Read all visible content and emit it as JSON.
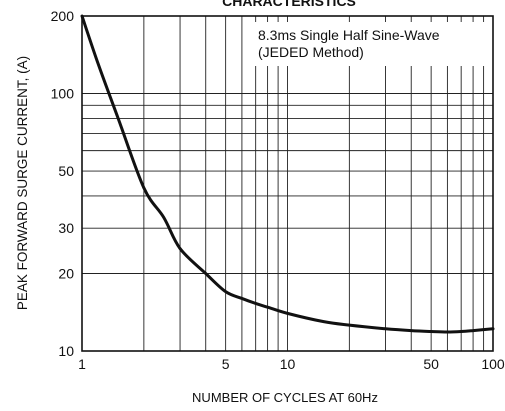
{
  "chart_data": {
    "type": "line",
    "title": "CHARACTERISTICS",
    "xlabel": "NUMBER OF CYCLES AT 60Hz",
    "ylabel": "PEAK FORWARD SURGE CURRENT, (A)",
    "x_scale": "log",
    "y_scale": "log",
    "xlim": [
      1,
      100
    ],
    "ylim": [
      10,
      200
    ],
    "grid": true,
    "x_ticks": [
      1,
      5,
      10,
      50,
      100
    ],
    "x_tick_labels": [
      "1",
      "5",
      "10",
      "50",
      "100"
    ],
    "y_ticks": [
      10,
      20,
      30,
      50,
      100,
      200
    ],
    "y_tick_labels": [
      "10",
      "20",
      "30",
      "50",
      "100",
      "200"
    ],
    "x_gridlines": [
      1,
      2,
      3,
      4,
      5,
      6,
      7,
      8,
      9,
      10,
      20,
      30,
      40,
      50,
      60,
      70,
      80,
      90,
      100
    ],
    "y_gridlines": [
      10,
      20,
      30,
      40,
      50,
      60,
      70,
      80,
      90,
      100,
      200
    ],
    "annotation": [
      "8.3ms Single Half Sine-Wave",
      "(JEDED Method)"
    ],
    "series": [
      {
        "x": [
          1,
          1.2,
          1.5,
          2,
          2.5,
          3,
          4,
          5,
          6,
          7,
          8,
          10,
          15,
          20,
          30,
          40,
          50,
          60,
          70,
          80,
          100
        ],
        "y": [
          200,
          130,
          80,
          43,
          33,
          25,
          20,
          17,
          16,
          15.3,
          14.8,
          14,
          13,
          12.6,
          12.2,
          12.0,
          11.9,
          11.85,
          11.9,
          12.0,
          12.2
        ]
      }
    ]
  }
}
